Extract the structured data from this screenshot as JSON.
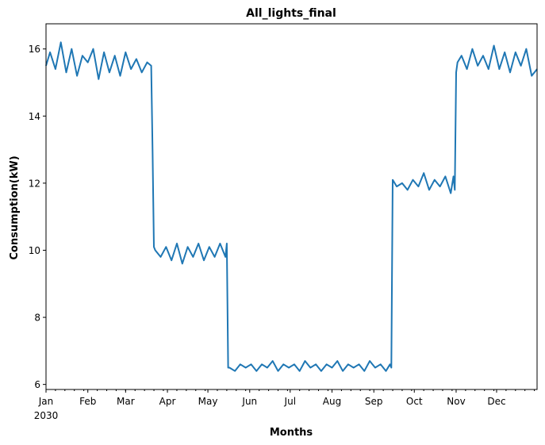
{
  "chart_data": {
    "type": "line",
    "title": "All_lights_final",
    "xlabel": "Months",
    "ylabel": "Consumption(kW)",
    "year_label": "2030",
    "xlim": [
      "2030-01-01",
      "2030-12-31"
    ],
    "ylim": [
      5.85,
      16.75
    ],
    "yticks": [
      6,
      8,
      10,
      12,
      14,
      16
    ],
    "month_ticks": [
      "Jan",
      "Feb",
      "Mar",
      "Apr",
      "May",
      "Jun",
      "Jul",
      "Aug",
      "Sep",
      "Oct",
      "Nov",
      "Dec"
    ],
    "grid": false,
    "line_color": "#1f77b4",
    "series": [
      {
        "x": [
          "2030-01-01",
          "2030-01-04",
          "2030-01-08",
          "2030-01-12",
          "2030-01-16",
          "2030-01-20",
          "2030-01-24",
          "2030-01-28",
          "2030-02-01",
          "2030-02-05",
          "2030-02-09",
          "2030-02-13",
          "2030-02-17",
          "2030-02-21",
          "2030-02-25",
          "2030-03-01",
          "2030-03-05",
          "2030-03-09",
          "2030-03-13",
          "2030-03-17",
          "2030-03-20",
          "2030-03-21",
          "2030-03-22",
          "2030-03-23",
          "2030-03-27",
          "2030-03-31",
          "2030-04-04",
          "2030-04-08",
          "2030-04-12",
          "2030-04-16",
          "2030-04-20",
          "2030-04-24",
          "2030-04-28",
          "2030-05-02",
          "2030-05-06",
          "2030-05-10",
          "2030-05-14",
          "2030-05-15",
          "2030-05-16",
          "2030-05-17",
          "2030-05-21",
          "2030-05-25",
          "2030-05-29",
          "2030-06-02",
          "2030-06-06",
          "2030-06-10",
          "2030-06-14",
          "2030-06-18",
          "2030-06-22",
          "2030-06-26",
          "2030-06-30",
          "2030-07-04",
          "2030-07-08",
          "2030-07-12",
          "2030-07-16",
          "2030-07-20",
          "2030-07-24",
          "2030-07-28",
          "2030-08-01",
          "2030-08-05",
          "2030-08-09",
          "2030-08-13",
          "2030-08-17",
          "2030-08-21",
          "2030-08-25",
          "2030-08-29",
          "2030-09-02",
          "2030-09-06",
          "2030-09-10",
          "2030-09-13",
          "2030-09-14",
          "2030-09-15",
          "2030-09-18",
          "2030-09-22",
          "2030-09-26",
          "2030-09-30",
          "2030-10-04",
          "2030-10-08",
          "2030-10-12",
          "2030-10-16",
          "2030-10-20",
          "2030-10-24",
          "2030-10-28",
          "2030-10-30",
          "2030-10-31",
          "2030-11-01",
          "2030-11-02",
          "2030-11-05",
          "2030-11-09",
          "2030-11-13",
          "2030-11-17",
          "2030-11-21",
          "2030-11-25",
          "2030-11-29",
          "2030-12-03",
          "2030-12-07",
          "2030-12-11",
          "2030-12-15",
          "2030-12-19",
          "2030-12-23",
          "2030-12-27",
          "2030-12-31"
        ],
        "y": [
          15.5,
          15.9,
          15.4,
          16.2,
          15.3,
          16.0,
          15.2,
          15.8,
          15.6,
          16.0,
          15.1,
          15.9,
          15.3,
          15.8,
          15.2,
          15.9,
          15.4,
          15.7,
          15.3,
          15.6,
          15.5,
          13.0,
          10.1,
          10.0,
          9.8,
          10.1,
          9.7,
          10.2,
          9.6,
          10.1,
          9.8,
          10.2,
          9.7,
          10.1,
          9.8,
          10.2,
          9.8,
          10.2,
          6.5,
          6.5,
          6.4,
          6.6,
          6.5,
          6.6,
          6.4,
          6.6,
          6.5,
          6.7,
          6.4,
          6.6,
          6.5,
          6.6,
          6.4,
          6.7,
          6.5,
          6.6,
          6.4,
          6.6,
          6.5,
          6.7,
          6.4,
          6.6,
          6.5,
          6.6,
          6.4,
          6.7,
          6.5,
          6.6,
          6.4,
          6.6,
          6.5,
          12.1,
          11.9,
          12.0,
          11.8,
          12.1,
          11.9,
          12.3,
          11.8,
          12.1,
          11.9,
          12.2,
          11.7,
          12.2,
          11.8,
          15.3,
          15.6,
          15.8,
          15.4,
          16.0,
          15.5,
          15.8,
          15.4,
          16.1,
          15.4,
          15.9,
          15.3,
          15.9,
          15.5,
          16.0,
          15.2,
          15.4
        ]
      }
    ]
  }
}
